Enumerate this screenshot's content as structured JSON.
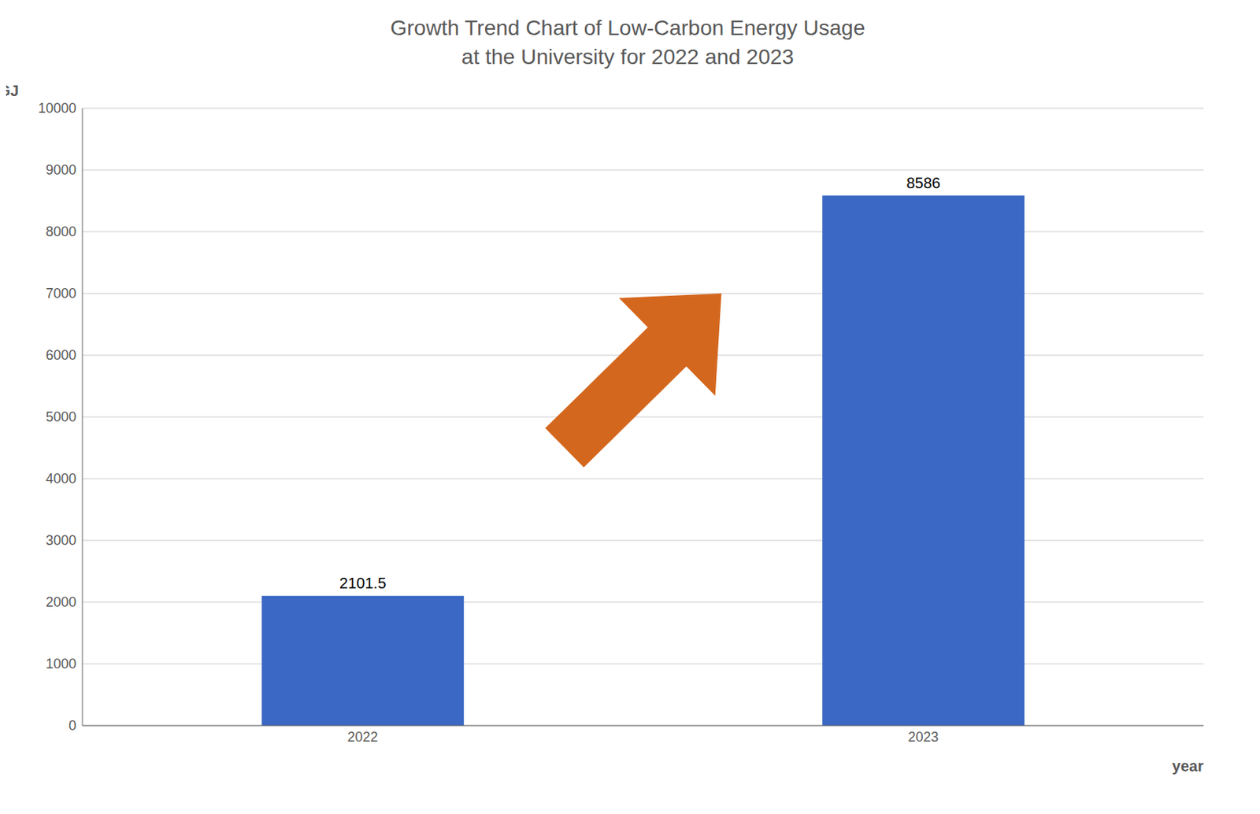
{
  "chart_data": {
    "type": "bar",
    "title": "Growth Trend Chart of Low-Carbon Energy Usage\nat the University for 2022 and 2023",
    "categories": [
      "2022",
      "2023"
    ],
    "values": [
      2101.5,
      8586
    ],
    "color": "#3B68C4",
    "xlabel": "year",
    "ylabel": "GJ",
    "ylim": [
      0,
      10000
    ],
    "yticks": [
      0,
      1000,
      2000,
      3000,
      4000,
      5000,
      6000,
      7000,
      8000,
      9000,
      10000
    ],
    "grid": true,
    "data_labels": true
  }
}
